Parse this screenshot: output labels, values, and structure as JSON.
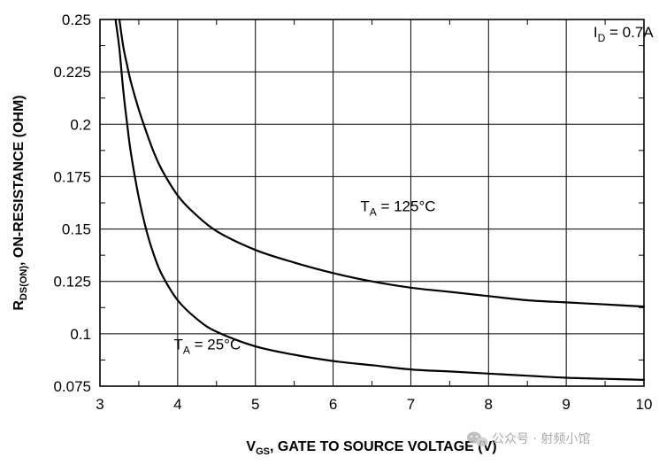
{
  "chart_data": {
    "type": "line",
    "xlabel": {
      "main": "V",
      "sub": "GS",
      "rest": ", GATE TO SOURCE VOLTAGE (V)"
    },
    "ylabel": {
      "main": "R",
      "sub": "DS(ON)",
      "rest": ", ON-RESISTANCE (OHM)"
    },
    "xlim": [
      3,
      10
    ],
    "ylim": [
      0.075,
      0.25
    ],
    "x_ticks": [
      "3",
      "4",
      "5",
      "6",
      "7",
      "8",
      "9",
      "10"
    ],
    "y_ticks": [
      "0.075",
      "0.1",
      "0.125",
      "0.15",
      "0.175",
      "0.2",
      "0.225",
      "0.25"
    ],
    "grid": true,
    "series": [
      {
        "id": "ta-125c",
        "x": [
          3.25,
          3.3,
          3.35,
          3.4,
          3.5,
          3.6,
          3.7,
          3.8,
          4.0,
          4.2,
          4.5,
          5.0,
          5.5,
          6.0,
          6.5,
          7.0,
          7.5,
          8.0,
          8.5,
          9.0,
          9.5,
          10.0
        ],
        "y": [
          0.25,
          0.237,
          0.228,
          0.22,
          0.207,
          0.196,
          0.186,
          0.178,
          0.166,
          0.158,
          0.149,
          0.14,
          0.134,
          0.129,
          0.125,
          0.122,
          0.12,
          0.118,
          0.116,
          0.115,
          0.114,
          0.113
        ]
      },
      {
        "id": "ta-25c",
        "x": [
          3.2,
          3.25,
          3.3,
          3.35,
          3.4,
          3.5,
          3.6,
          3.7,
          3.8,
          4.0,
          4.25,
          4.5,
          5.0,
          5.5,
          6.0,
          6.5,
          7.0,
          7.5,
          8.0,
          8.5,
          9.0,
          9.5,
          10.0
        ],
        "y": [
          0.25,
          0.236,
          0.216,
          0.2,
          0.186,
          0.165,
          0.149,
          0.137,
          0.128,
          0.116,
          0.107,
          0.101,
          0.094,
          0.09,
          0.087,
          0.085,
          0.083,
          0.082,
          0.081,
          0.08,
          0.079,
          0.0785,
          0.078
        ]
      }
    ],
    "annotations": [
      {
        "id": "id-condition",
        "main": "I",
        "sub": "D",
        "rest": " = 0.7A",
        "x": 9.35,
        "y": 0.2415
      },
      {
        "id": "label-125c",
        "main": "T",
        "sub": "A",
        "rest": " = 125°C",
        "x": 6.35,
        "y": 0.1585
      },
      {
        "id": "label-25c",
        "main": "T",
        "sub": "A",
        "rest": " = 25°C",
        "x": 3.95,
        "y": 0.0925
      }
    ]
  },
  "watermark": {
    "text": "公众号 · 射频小馆",
    "icon": "wechat-icon"
  }
}
